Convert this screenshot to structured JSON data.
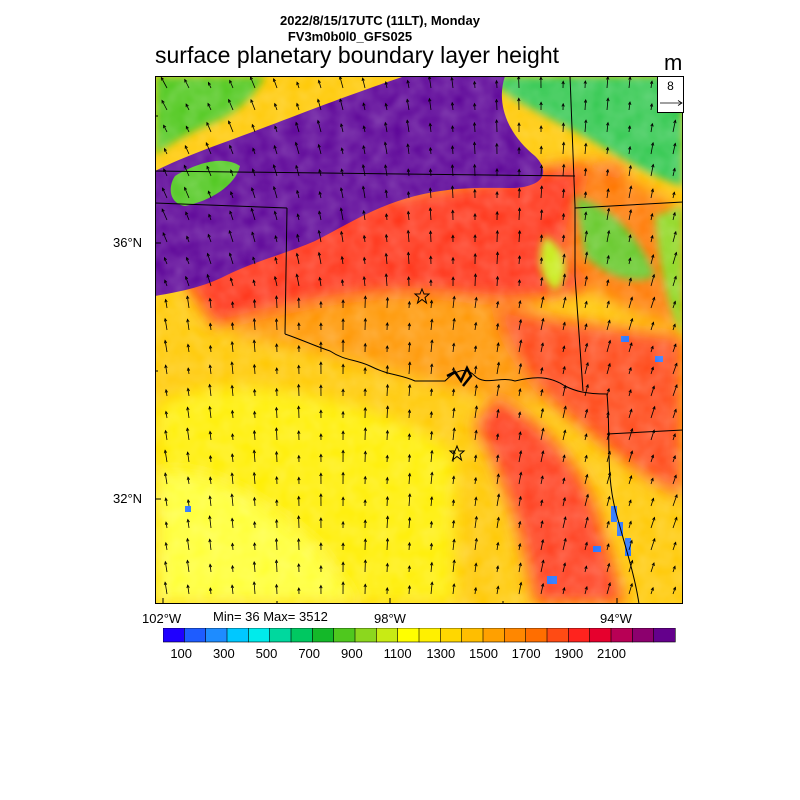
{
  "header": {
    "line1": "2022/8/15/17UTC (11LT), Monday",
    "line2": "FV3m0b0l0_GFS025",
    "title": "surface planetary boundary layer height",
    "units": "m"
  },
  "vector_legend": {
    "value": "8"
  },
  "axes": {
    "lat_labels": [
      "36°N",
      "32°N"
    ],
    "lon_labels": [
      "102°W",
      "98°W",
      "94°W"
    ]
  },
  "stats": "Min= 36 Max= 3512",
  "colorbar": {
    "colors": [
      "#1f00ff",
      "#1e5cff",
      "#1e8cff",
      "#00c8ff",
      "#00ebeb",
      "#00d89e",
      "#00c861",
      "#14b829",
      "#4fc81e",
      "#8cd71e",
      "#c8eb14",
      "#ffff00",
      "#fff000",
      "#ffd700",
      "#ffbe00",
      "#ffa000",
      "#ff8700",
      "#ff6e00",
      "#ff4b14",
      "#ff231e",
      "#e6002d",
      "#b80055",
      "#8c006e",
      "#64008c"
    ],
    "labels": [
      "100",
      "300",
      "500",
      "700",
      "900",
      "1100",
      "1300",
      "1500",
      "1700",
      "1900",
      "2100"
    ]
  },
  "map_colors": {
    "purple": "#5a0096",
    "red": "#ff2a14",
    "orange": "#ff8c00",
    "yellow": "#ffff00",
    "green": "#50c81e",
    "blue": "#1e6eff"
  },
  "markers": [
    "star-north",
    "star-south"
  ]
}
